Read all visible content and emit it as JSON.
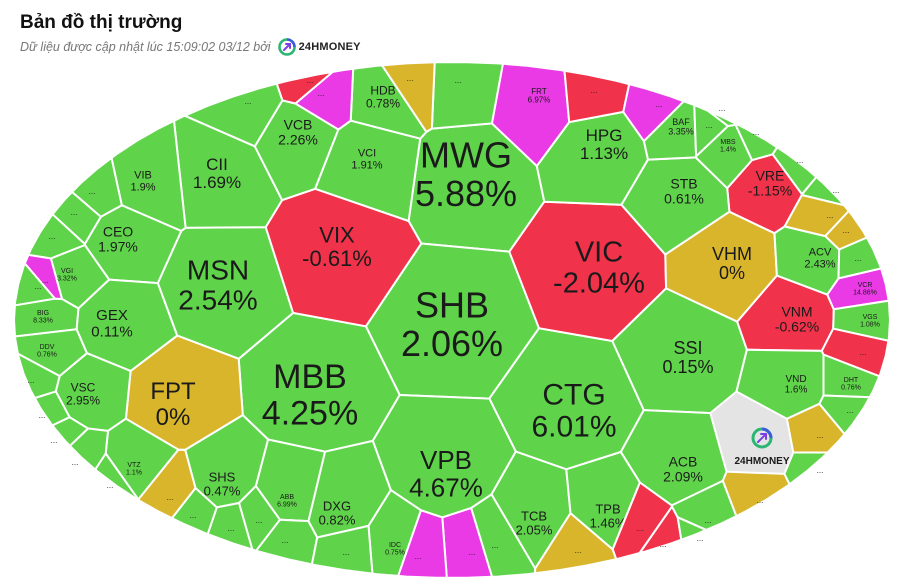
{
  "header": {
    "title": "Bản đồ thị trường",
    "updated_text": "Dữ liệu được cập nhật lúc 15:09:02 03/12 bởi",
    "brand": "24HMONEY"
  },
  "colors": {
    "up": "#5fd34a",
    "down": "#f0334a",
    "flat": "#d9b52b",
    "ceiling": "#e93ae6",
    "empty": "#e4e4e4",
    "stroke": "#ffffff"
  },
  "tiles": [
    {
      "symbol": "MWG",
      "change": "5.88%",
      "status": "up"
    },
    {
      "symbol": "SHB",
      "change": "2.06%",
      "status": "up"
    },
    {
      "symbol": "MBB",
      "change": "4.25%",
      "status": "up"
    },
    {
      "symbol": "CTG",
      "change": "6.01%",
      "status": "up"
    },
    {
      "symbol": "VPB",
      "change": "4.67%",
      "status": "up"
    },
    {
      "symbol": "VIC",
      "change": "-2.04%",
      "status": "down"
    },
    {
      "symbol": "MSN",
      "change": "2.54%",
      "status": "up"
    },
    {
      "symbol": "VIX",
      "change": "-0.61%",
      "status": "down"
    },
    {
      "symbol": "FPT",
      "change": "0%",
      "status": "flat"
    },
    {
      "symbol": "VHM",
      "change": "0%",
      "status": "flat"
    },
    {
      "symbol": "SSI",
      "change": "0.15%",
      "status": "up"
    },
    {
      "symbol": "HPG",
      "change": "1.13%",
      "status": "up"
    },
    {
      "symbol": "CII",
      "change": "1.69%",
      "status": "up"
    },
    {
      "symbol": "VCB",
      "change": "2.26%",
      "status": "up"
    },
    {
      "symbol": "CEO",
      "change": "1.97%",
      "status": "up"
    },
    {
      "symbol": "GEX",
      "change": "0.11%",
      "status": "up"
    },
    {
      "symbol": "ACB",
      "change": "2.09%",
      "status": "up"
    },
    {
      "symbol": "VNM",
      "change": "-0.62%",
      "status": "down"
    },
    {
      "symbol": "VRE",
      "change": "-1.15%",
      "status": "down"
    },
    {
      "symbol": "STB",
      "change": "0.61%",
      "status": "up"
    },
    {
      "symbol": "TCB",
      "change": "2.05%",
      "status": "up"
    },
    {
      "symbol": "TPB",
      "change": "1.46%",
      "status": "up"
    },
    {
      "symbol": "DXG",
      "change": "0.82%",
      "status": "up"
    },
    {
      "symbol": "SHS",
      "change": "0.47%",
      "status": "up"
    },
    {
      "symbol": "VSC",
      "change": "2.95%",
      "status": "up"
    },
    {
      "symbol": "HDB",
      "change": "0.78%",
      "status": "up"
    },
    {
      "symbol": "VCI",
      "change": "1.91%",
      "status": "up"
    },
    {
      "symbol": "VIB",
      "change": "1.9%",
      "status": "up"
    },
    {
      "symbol": "ACV",
      "change": "2.43%",
      "status": "up"
    },
    {
      "symbol": "VND",
      "change": "1.6%",
      "status": "up"
    },
    {
      "symbol": "BAF",
      "change": "3.35%",
      "status": "up"
    },
    {
      "symbol": "FRT",
      "change": "6.97%",
      "status": "ceiling"
    },
    {
      "symbol": "MBS",
      "change": "1.4%",
      "status": "up"
    },
    {
      "symbol": "VGI",
      "change": "3.32%",
      "status": "up"
    },
    {
      "symbol": "BIG",
      "change": "8.33%",
      "status": "up"
    },
    {
      "symbol": "DDV",
      "change": "0.76%",
      "status": "up"
    },
    {
      "symbol": "VTZ",
      "change": "1.1%",
      "status": "up"
    },
    {
      "symbol": "ABB",
      "change": "6.99%",
      "status": "up"
    },
    {
      "symbol": "IDC",
      "change": "0.75%",
      "status": "up"
    },
    {
      "symbol": "VCR",
      "change": "14.86%",
      "status": "ceiling"
    },
    {
      "symbol": "VGS",
      "change": "1.08%",
      "status": "up"
    },
    {
      "symbol": "DHT",
      "change": "0.76%",
      "status": "up"
    },
    {
      "symbol": "",
      "change": "...",
      "status": "up"
    },
    {
      "symbol": "",
      "change": "...",
      "status": "ceiling"
    },
    {
      "symbol": "",
      "change": "...",
      "status": "ceiling"
    },
    {
      "symbol": "",
      "change": "...",
      "status": "ceiling"
    },
    {
      "symbol": "",
      "change": "...",
      "status": "up"
    },
    {
      "symbol": "",
      "change": "...",
      "status": "ceiling"
    },
    {
      "symbol": "",
      "change": "...",
      "status": "down"
    },
    {
      "symbol": "",
      "change": "...",
      "status": "down"
    },
    {
      "symbol": "",
      "change": "...",
      "status": "down"
    },
    {
      "symbol": "",
      "change": "...",
      "status": "down"
    },
    {
      "symbol": "",
      "change": "...",
      "status": "ceiling"
    },
    {
      "symbol": "",
      "change": "...",
      "status": "ceiling"
    },
    {
      "symbol": "",
      "change": "...",
      "status": "down"
    },
    {
      "symbol": "",
      "change": "...",
      "status": "up"
    },
    {
      "symbol": "",
      "change": "...",
      "status": "up"
    },
    {
      "symbol": "",
      "change": "...",
      "status": "up"
    },
    {
      "symbol": "",
      "change": "...",
      "status": "up"
    },
    {
      "symbol": "",
      "change": "...",
      "status": "flat"
    },
    {
      "symbol": "",
      "change": "...",
      "status": "flat"
    },
    {
      "symbol": "",
      "change": "...",
      "status": "flat"
    },
    {
      "symbol": "",
      "change": "...",
      "status": "flat"
    },
    {
      "symbol": "",
      "change": "...",
      "status": "flat"
    },
    {
      "symbol": "",
      "change": "...",
      "status": "flat"
    },
    {
      "symbol": "",
      "change": "...",
      "status": "flat"
    },
    {
      "symbol": "",
      "change": "...",
      "status": "up"
    },
    {
      "symbol": "",
      "change": "...",
      "status": "up"
    },
    {
      "symbol": "",
      "change": "...",
      "status": "up"
    },
    {
      "symbol": "",
      "change": "...",
      "status": "up"
    },
    {
      "symbol": "",
      "change": "...",
      "status": "up"
    },
    {
      "symbol": "",
      "change": "...",
      "status": "up"
    },
    {
      "symbol": "",
      "change": "...",
      "status": "up"
    },
    {
      "symbol": "",
      "change": "...",
      "status": "up"
    },
    {
      "symbol": "",
      "change": "...",
      "status": "up"
    },
    {
      "symbol": "",
      "change": "...",
      "status": "up"
    },
    {
      "symbol": "",
      "change": "...",
      "status": "up"
    },
    {
      "symbol": "",
      "change": "...",
      "status": "up"
    },
    {
      "symbol": "",
      "change": "...",
      "status": "up"
    },
    {
      "symbol": "",
      "change": "...",
      "status": "up"
    },
    {
      "symbol": "",
      "change": "...",
      "status": "up"
    },
    {
      "symbol": "",
      "change": "...",
      "status": "up"
    },
    {
      "symbol": "",
      "change": "...",
      "status": "up"
    },
    {
      "symbol": "",
      "change": "...",
      "status": "up"
    },
    {
      "symbol": "",
      "change": "...",
      "status": "up"
    },
    {
      "symbol": "",
      "change": "...",
      "status": "up"
    },
    {
      "symbol": "",
      "change": "...",
      "status": "up"
    }
  ],
  "watermark": {
    "brand": "24HMONEY"
  }
}
